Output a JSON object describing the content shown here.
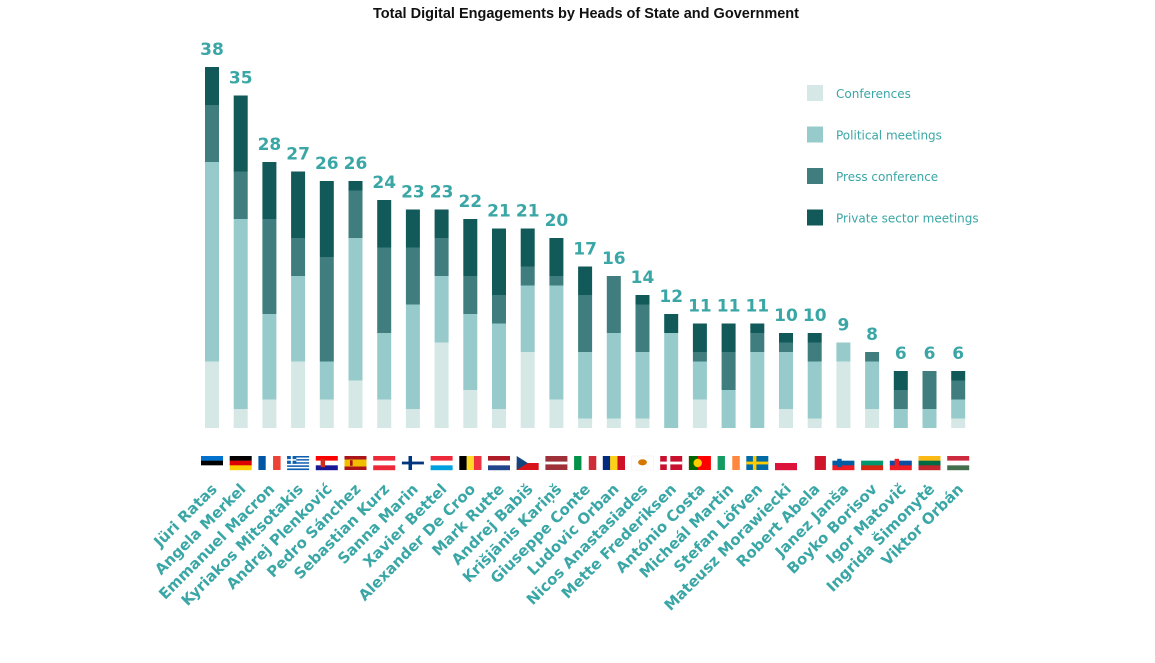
{
  "chart_data": {
    "type": "bar",
    "stacked": true,
    "title": "Total Digital Engagements by Heads of State and Government",
    "categories": [
      "Jüri Ratas",
      "Angela Merkel",
      "Emmanuel Macron",
      "Kyriakos Mitsotakis",
      "Andrej Plenković",
      "Pedro Sánchez",
      "Sebastian Kurz",
      "Sanna Marin",
      "Xavier Bettel",
      "Alexander De Croo",
      "Mark Rutte",
      "Andrej Babiš",
      "Krišjānis Kariņš",
      "Giuseppe Conte",
      "Ludovic Orban",
      "Nicos Anastasiades",
      "Mette Frederiksen",
      "António Costa",
      "Micheál Martin",
      "Stefan Löfven",
      "Mateusz Morawiecki",
      "Robert Abela",
      "Janez Janša",
      "Boyko Borisov",
      "Igor Matovič",
      "Ingrida Šimonytė",
      "Viktor Orbán"
    ],
    "totals": [
      38,
      35,
      28,
      27,
      26,
      26,
      24,
      23,
      23,
      22,
      21,
      21,
      20,
      17,
      16,
      14,
      12,
      11,
      11,
      11,
      10,
      10,
      9,
      8,
      6,
      6,
      6
    ],
    "flags": [
      "estonia",
      "germany",
      "france",
      "greece",
      "croatia",
      "spain",
      "austria",
      "finland",
      "luxembourg",
      "belgium",
      "netherlands",
      "czechia",
      "latvia",
      "italy",
      "romania",
      "cyprus",
      "denmark",
      "portugal",
      "ireland",
      "sweden",
      "poland",
      "malta",
      "slovenia",
      "bulgaria",
      "slovakia",
      "lithuania",
      "hungary"
    ],
    "series": [
      {
        "name": "Conferences",
        "color": "#d6e8e6",
        "values": [
          7,
          2,
          3,
          7,
          3,
          5,
          3,
          2,
          9,
          4,
          2,
          8,
          3,
          1,
          1,
          1,
          0,
          3,
          0,
          0,
          2,
          1,
          7,
          2,
          0,
          0,
          1
        ]
      },
      {
        "name": "Political meetings",
        "color": "#97cbcb",
        "values": [
          21,
          20,
          9,
          9,
          4,
          15,
          7,
          11,
          7,
          8,
          9,
          7,
          12,
          7,
          9,
          7,
          10,
          4,
          4,
          8,
          6,
          6,
          2,
          5,
          2,
          2,
          2
        ]
      },
      {
        "name": "Press conference",
        "color": "#3f7d7e",
        "values": [
          6,
          5,
          10,
          4,
          11,
          5,
          9,
          6,
          4,
          4,
          3,
          2,
          1,
          6,
          6,
          5,
          0,
          1,
          4,
          2,
          1,
          2,
          0,
          1,
          2,
          4,
          2
        ]
      },
      {
        "name": "Private sector meetings",
        "color": "#12595a",
        "values": [
          4,
          8,
          6,
          7,
          8,
          1,
          5,
          4,
          3,
          6,
          7,
          4,
          4,
          3,
          0,
          1,
          2,
          3,
          3,
          1,
          1,
          1,
          0,
          0,
          2,
          0,
          1
        ]
      }
    ],
    "ylim": [
      0,
      38
    ],
    "legend_position": "top-right",
    "grid": false
  }
}
